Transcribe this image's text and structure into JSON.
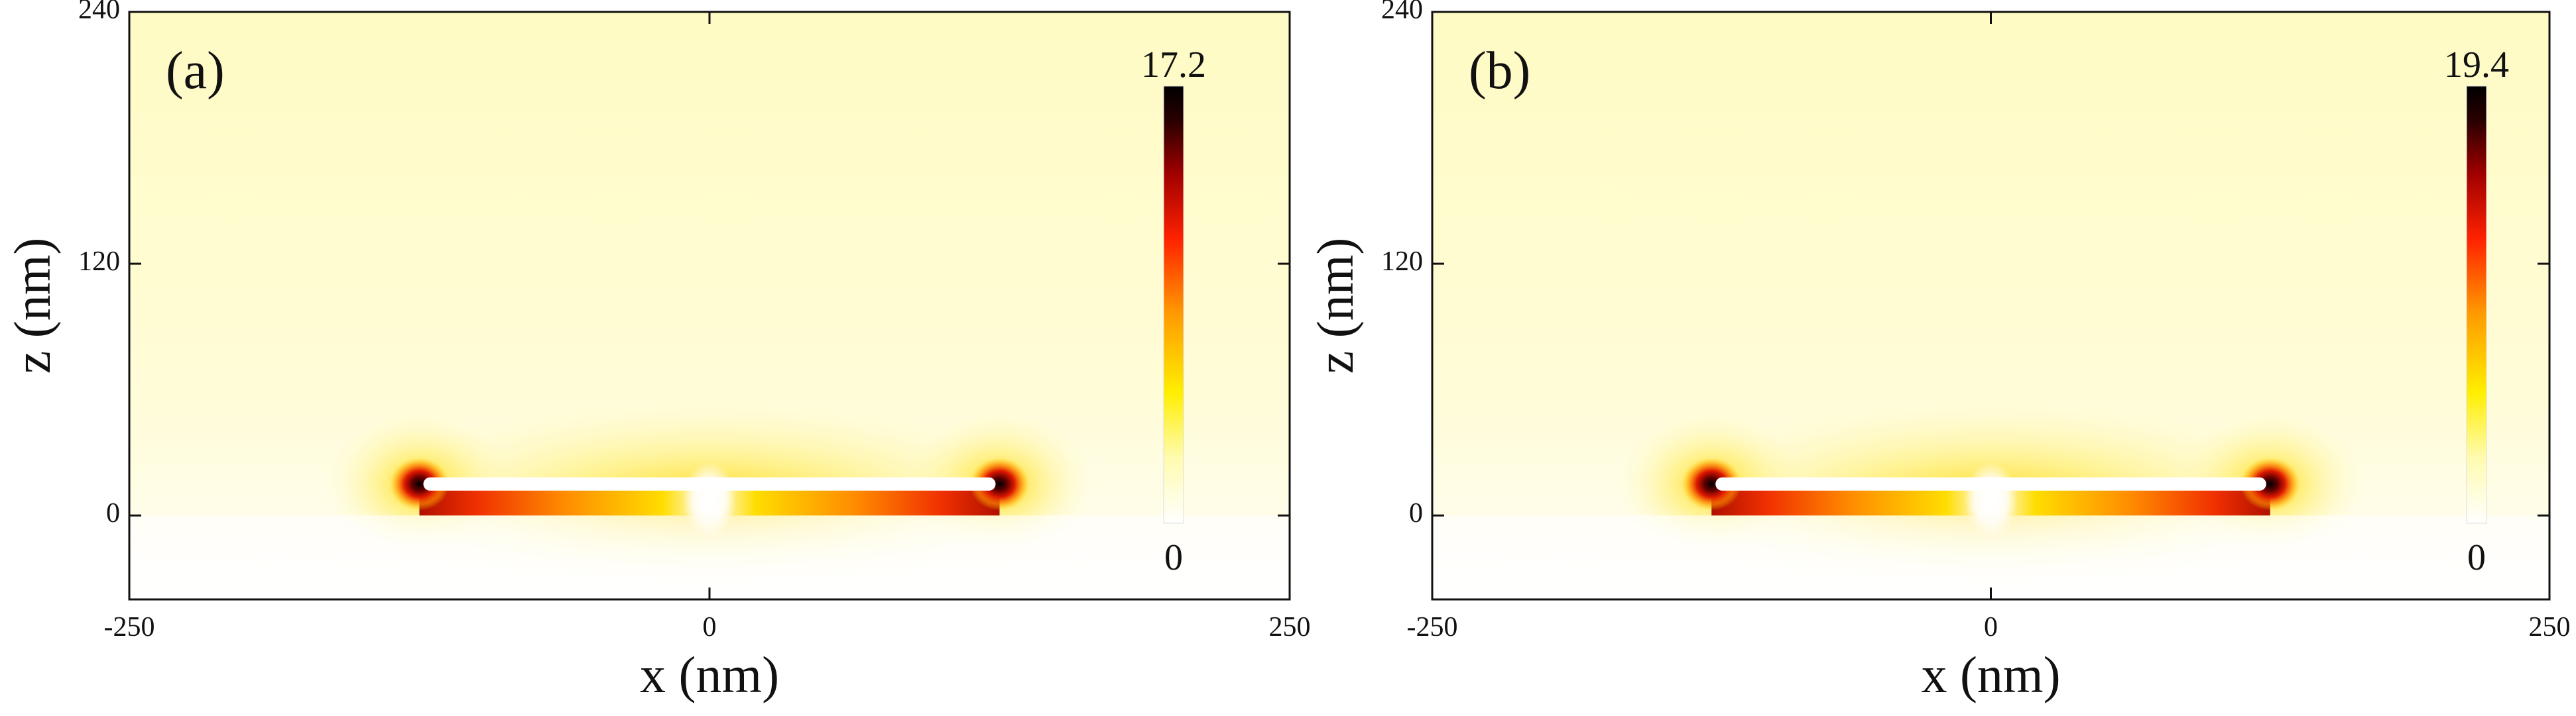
{
  "chart_data": [
    {
      "type": "heatmap",
      "panel_label": "(a)",
      "xlabel": "x (nm)",
      "ylabel": "z (nm)",
      "xlim": [
        -250,
        250
      ],
      "ylim": [
        -40,
        240
      ],
      "xticks": [
        -250,
        0,
        250
      ],
      "yticks": [
        0,
        120,
        240
      ],
      "colorbar": {
        "max_label": "17.2",
        "min_label": "0",
        "min": 0,
        "max": 17.2
      },
      "structure": {
        "x_start": -125,
        "x_end": 125,
        "z_bottom": 0,
        "z_top": 15,
        "gap_x": 0
      },
      "hotspots": [
        {
          "x": -125,
          "z": 15,
          "value": 17.2
        },
        {
          "x": 125,
          "z": 15,
          "value": 17.2
        }
      ]
    },
    {
      "type": "heatmap",
      "panel_label": "(b)",
      "xlabel": "x (nm)",
      "ylabel": "z (nm)",
      "xlim": [
        -250,
        250
      ],
      "ylim": [
        -40,
        240
      ],
      "xticks": [
        -250,
        0,
        250
      ],
      "yticks": [
        0,
        120,
        240
      ],
      "colorbar": {
        "max_label": "19.4",
        "min_label": "0",
        "min": 0,
        "max": 19.4
      },
      "structure": {
        "x_start": -125,
        "x_end": 125,
        "z_bottom": 0,
        "z_top": 15,
        "gap_x": 0
      },
      "hotspots": [
        {
          "x": -125,
          "z": 15,
          "value": 19.4
        },
        {
          "x": 125,
          "z": 15,
          "value": 19.4
        }
      ]
    }
  ],
  "colors": {
    "background_near": "#fffef4",
    "background_far": "#fffbc6",
    "colormap": [
      "#ffffff",
      "#fff7a0",
      "#ffee00",
      "#ff9a00",
      "#ff2200",
      "#a00000",
      "#2a0000",
      "#000000"
    ]
  }
}
